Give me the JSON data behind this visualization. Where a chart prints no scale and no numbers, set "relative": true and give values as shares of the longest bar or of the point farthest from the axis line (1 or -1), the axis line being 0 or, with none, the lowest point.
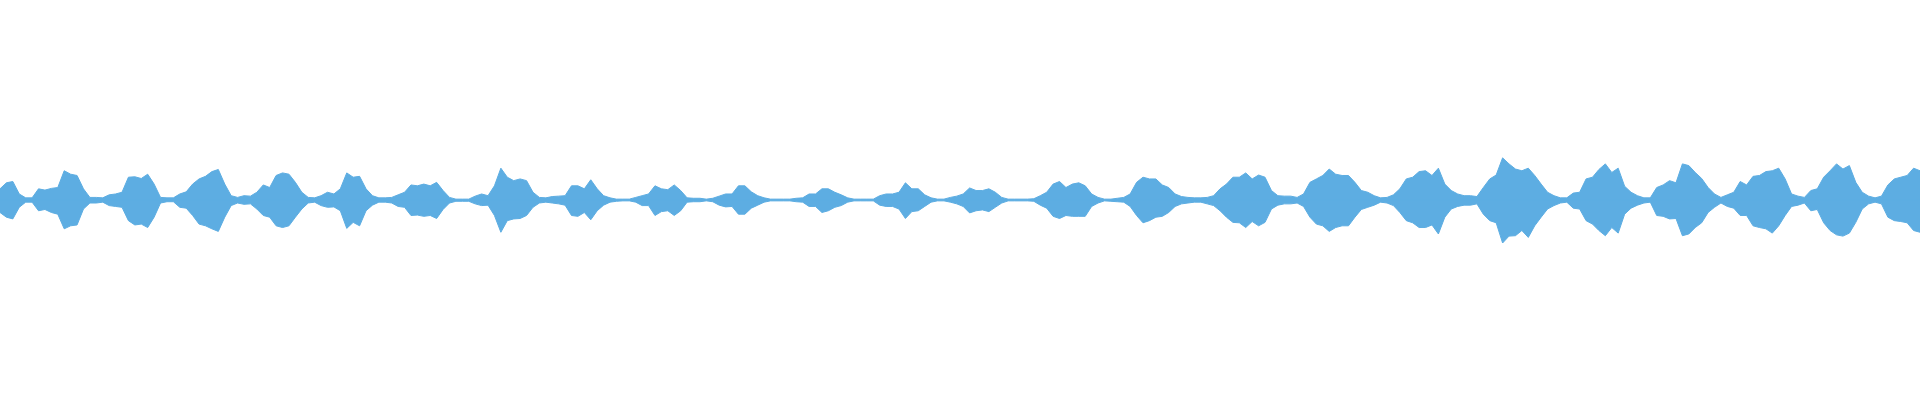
{
  "chart_data": {
    "type": "area",
    "relative": true,
    "ref_lines": [
      {
        "axis": "y",
        "value": 0,
        "color": "#5dade2"
      }
    ],
    "categories": [
      null,
      null,
      null,
      null,
      null,
      null,
      null,
      null,
      null,
      null,
      null,
      null,
      null,
      null,
      null,
      null,
      null,
      null,
      null,
      null,
      null,
      null,
      null,
      null,
      null,
      null,
      null,
      null,
      null,
      null,
      null,
      null,
      null,
      null,
      null,
      null,
      null,
      null,
      null,
      null,
      null,
      null,
      null,
      null,
      null,
      null,
      null,
      null,
      null,
      null,
      null,
      null,
      null,
      null,
      null,
      null,
      null,
      null,
      null,
      null,
      null,
      null,
      null,
      null,
      null,
      null,
      null,
      null,
      null,
      null,
      null,
      null,
      null,
      null,
      null,
      null,
      null,
      null,
      null,
      null,
      null,
      null,
      null,
      null,
      null,
      null,
      null,
      null,
      null,
      null,
      null,
      null,
      null,
      null,
      null,
      null,
      null,
      null,
      null,
      null,
      null,
      null,
      null,
      null,
      null,
      null,
      null,
      null,
      null,
      null,
      null,
      null,
      null,
      null,
      null,
      null,
      null,
      null,
      null,
      null,
      null,
      null,
      null,
      null,
      null,
      null,
      null,
      null,
      null,
      null,
      null,
      null,
      null,
      null,
      null,
      null,
      null,
      null,
      null,
      null,
      null,
      null,
      null,
      null,
      null,
      null,
      null,
      null,
      null,
      null,
      null,
      null,
      null,
      null,
      null,
      null,
      null,
      null,
      null,
      null,
      null,
      null,
      null,
      null,
      null,
      null,
      null,
      null,
      null,
      null,
      null,
      null,
      null,
      null,
      null,
      null,
      null,
      null,
      null,
      null,
      null,
      null,
      null,
      null,
      null,
      null,
      null,
      null,
      null,
      null,
      null,
      null,
      null,
      null,
      null,
      null,
      null,
      null,
      null,
      null,
      null,
      null,
      null,
      null,
      null,
      null,
      null,
      null,
      null,
      null,
      null,
      null,
      null,
      null,
      null,
      null,
      null,
      null,
      null,
      null,
      null,
      null,
      null,
      null,
      null,
      null,
      null,
      null,
      null,
      null,
      null,
      null,
      null,
      null,
      null,
      null,
      null,
      null,
      null,
      null,
      null,
      null,
      null,
      null,
      null,
      null,
      null,
      null,
      null,
      null,
      null,
      null,
      null,
      null,
      null,
      null,
      null,
      null,
      null,
      null,
      null,
      null,
      null,
      null,
      null,
      null,
      null,
      null,
      null,
      null,
      null,
      null,
      null,
      null,
      null,
      null,
      null,
      null,
      null,
      null,
      null,
      null,
      null,
      null,
      null,
      null,
      null,
      null,
      null,
      null,
      null,
      null,
      null,
      null,
      null,
      null,
      null,
      null,
      null,
      null
    ],
    "series": [
      {
        "color": "#5dade2",
        "values": [
          0.26,
          0.4,
          0.43,
          0.14,
          0.05,
          0.05,
          0.26,
          0.23,
          0.27,
          0.29,
          0.68,
          0.6,
          0.57,
          0.26,
          0.06,
          0.06,
          0.05,
          0.12,
          0.14,
          0.18,
          0.53,
          0.54,
          0.5,
          0.6,
          0.37,
          0.06,
          0.05,
          0.05,
          0.14,
          0.19,
          0.37,
          0.49,
          0.55,
          0.66,
          0.71,
          0.37,
          0.1,
          0.06,
          0.1,
          0.09,
          0.18,
          0.35,
          0.29,
          0.57,
          0.63,
          0.6,
          0.41,
          0.18,
          0.06,
          0.05,
          0.1,
          0.18,
          0.14,
          0.26,
          0.63,
          0.53,
          0.55,
          0.26,
          0.1,
          0.05,
          0.05,
          0.06,
          0.12,
          0.18,
          0.35,
          0.33,
          0.37,
          0.33,
          0.41,
          0.22,
          0.06,
          0.02,
          0.02,
          0.02,
          0.09,
          0.14,
          0.1,
          0.33,
          0.74,
          0.53,
          0.45,
          0.49,
          0.45,
          0.18,
          0.06,
          0.05,
          0.08,
          0.09,
          0.1,
          0.33,
          0.33,
          0.26,
          0.47,
          0.26,
          0.1,
          0.05,
          0.02,
          0.02,
          0.02,
          0.06,
          0.1,
          0.14,
          0.33,
          0.26,
          0.24,
          0.35,
          0.22,
          0.05,
          0.04,
          0.04,
          0.02,
          0.04,
          0.09,
          0.14,
          0.14,
          0.33,
          0.33,
          0.19,
          0.1,
          0.05,
          0.02,
          0.02,
          0.02,
          0.02,
          0.04,
          0.05,
          0.14,
          0.14,
          0.26,
          0.26,
          0.18,
          0.12,
          0.05,
          0.02,
          0.02,
          0.02,
          0.02,
          0.1,
          0.14,
          0.14,
          0.18,
          0.4,
          0.26,
          0.26,
          0.12,
          0.05,
          0.02,
          0.02,
          0.06,
          0.09,
          0.14,
          0.28,
          0.22,
          0.22,
          0.26,
          0.18,
          0.06,
          0.02,
          0.02,
          0.02,
          0.02,
          0.03,
          0.1,
          0.18,
          0.37,
          0.43,
          0.29,
          0.37,
          0.4,
          0.33,
          0.14,
          0.06,
          0.02,
          0.02,
          0.04,
          0.06,
          0.14,
          0.41,
          0.53,
          0.49,
          0.49,
          0.35,
          0.29,
          0.14,
          0.08,
          0.06,
          0.05,
          0.05,
          0.06,
          0.1,
          0.26,
          0.37,
          0.53,
          0.53,
          0.63,
          0.49,
          0.58,
          0.53,
          0.22,
          0.1,
          0.09,
          0.09,
          0.06,
          0.14,
          0.41,
          0.49,
          0.57,
          0.72,
          0.6,
          0.57,
          0.57,
          0.41,
          0.22,
          0.18,
          0.1,
          0.05,
          0.06,
          0.12,
          0.26,
          0.49,
          0.53,
          0.66,
          0.68,
          0.57,
          0.74,
          0.37,
          0.22,
          0.14,
          0.1,
          0.1,
          0.08,
          0.29,
          0.49,
          0.58,
          0.98,
          0.84,
          0.72,
          0.68,
          0.74,
          0.57,
          0.37,
          0.18,
          0.1,
          0.05,
          0.05,
          0.16,
          0.18,
          0.49,
          0.53,
          0.71,
          0.84,
          0.64,
          0.74,
          0.32,
          0.18,
          0.1,
          0.05,
          0.05,
          0.29,
          0.35,
          0.45,
          0.4,
          0.84,
          0.8,
          0.64,
          0.5,
          0.29,
          0.14,
          0.06,
          0.12,
          0.18,
          0.43,
          0.35,
          0.55,
          0.57,
          0.66,
          0.68,
          0.74,
          0.49,
          0.14,
          0.09,
          0.06,
          0.22,
          0.26,
          0.53,
          0.68,
          0.84,
          0.72,
          0.8,
          0.41,
          0.18,
          0.09,
          0.05,
          0.09,
          0.35,
          0.49,
          0.53,
          0.57,
          0.74,
          0.68
        ]
      },
      {
        "color": "#5dade2",
        "values": [
          -0.29,
          -0.4,
          -0.44,
          -0.17,
          -0.05,
          -0.05,
          -0.25,
          -0.22,
          -0.29,
          -0.33,
          -0.67,
          -0.6,
          -0.58,
          -0.21,
          -0.07,
          -0.07,
          -0.05,
          -0.13,
          -0.15,
          -0.17,
          -0.48,
          -0.58,
          -0.56,
          -0.64,
          -0.4,
          -0.07,
          -0.04,
          -0.04,
          -0.17,
          -0.19,
          -0.36,
          -0.56,
          -0.6,
          -0.67,
          -0.73,
          -0.4,
          -0.13,
          -0.07,
          -0.1,
          -0.09,
          -0.21,
          -0.36,
          -0.4,
          -0.6,
          -0.64,
          -0.6,
          -0.4,
          -0.21,
          -0.07,
          -0.05,
          -0.13,
          -0.17,
          -0.16,
          -0.25,
          -0.66,
          -0.52,
          -0.6,
          -0.25,
          -0.12,
          -0.05,
          -0.05,
          -0.07,
          -0.15,
          -0.17,
          -0.36,
          -0.35,
          -0.38,
          -0.36,
          -0.43,
          -0.22,
          -0.07,
          -0.03,
          -0.03,
          -0.03,
          -0.09,
          -0.13,
          -0.12,
          -0.36,
          -0.75,
          -0.48,
          -0.44,
          -0.43,
          -0.36,
          -0.17,
          -0.07,
          -0.05,
          -0.07,
          -0.09,
          -0.12,
          -0.36,
          -0.38,
          -0.29,
          -0.46,
          -0.25,
          -0.12,
          -0.05,
          -0.03,
          -0.02,
          -0.02,
          -0.05,
          -0.13,
          -0.13,
          -0.36,
          -0.27,
          -0.25,
          -0.36,
          -0.25,
          -0.05,
          -0.04,
          -0.04,
          -0.02,
          -0.04,
          -0.12,
          -0.16,
          -0.15,
          -0.33,
          -0.33,
          -0.19,
          -0.12,
          -0.05,
          -0.02,
          -0.02,
          -0.02,
          -0.02,
          -0.04,
          -0.05,
          -0.15,
          -0.15,
          -0.29,
          -0.25,
          -0.17,
          -0.13,
          -0.05,
          -0.02,
          -0.02,
          -0.02,
          -0.02,
          -0.12,
          -0.15,
          -0.15,
          -0.21,
          -0.43,
          -0.27,
          -0.25,
          -0.15,
          -0.05,
          -0.02,
          -0.02,
          -0.05,
          -0.09,
          -0.15,
          -0.3,
          -0.25,
          -0.23,
          -0.27,
          -0.17,
          -0.07,
          -0.02,
          -0.02,
          -0.02,
          -0.02,
          -0.03,
          -0.12,
          -0.19,
          -0.38,
          -0.43,
          -0.36,
          -0.38,
          -0.38,
          -0.38,
          -0.15,
          -0.07,
          -0.02,
          -0.03,
          -0.04,
          -0.05,
          -0.15,
          -0.36,
          -0.53,
          -0.48,
          -0.4,
          -0.38,
          -0.29,
          -0.15,
          -0.09,
          -0.07,
          -0.05,
          -0.05,
          -0.09,
          -0.13,
          -0.25,
          -0.4,
          -0.52,
          -0.53,
          -0.64,
          -0.5,
          -0.6,
          -0.52,
          -0.21,
          -0.12,
          -0.09,
          -0.09,
          -0.07,
          -0.15,
          -0.4,
          -0.56,
          -0.6,
          -0.73,
          -0.64,
          -0.6,
          -0.6,
          -0.4,
          -0.22,
          -0.17,
          -0.12,
          -0.05,
          -0.07,
          -0.13,
          -0.29,
          -0.48,
          -0.53,
          -0.64,
          -0.64,
          -0.58,
          -0.79,
          -0.4,
          -0.21,
          -0.15,
          -0.12,
          -0.12,
          -0.09,
          -0.33,
          -0.48,
          -0.53,
          -1.0,
          -0.84,
          -0.83,
          -0.71,
          -0.87,
          -0.6,
          -0.4,
          -0.21,
          -0.13,
          -0.07,
          -0.05,
          -0.19,
          -0.21,
          -0.48,
          -0.56,
          -0.71,
          -0.83,
          -0.64,
          -0.77,
          -0.33,
          -0.19,
          -0.12,
          -0.07,
          -0.05,
          -0.36,
          -0.38,
          -0.44,
          -0.43,
          -0.83,
          -0.79,
          -0.64,
          -0.53,
          -0.29,
          -0.17,
          -0.07,
          -0.15,
          -0.19,
          -0.36,
          -0.36,
          -0.6,
          -0.64,
          -0.67,
          -0.77,
          -0.6,
          -0.36,
          -0.15,
          -0.12,
          -0.07,
          -0.25,
          -0.22,
          -0.53,
          -0.71,
          -0.81,
          -0.84,
          -0.77,
          -0.52,
          -0.21,
          -0.09,
          -0.05,
          -0.09,
          -0.4,
          -0.48,
          -0.5,
          -0.53,
          -0.71,
          -0.75
        ]
      }
    ]
  }
}
